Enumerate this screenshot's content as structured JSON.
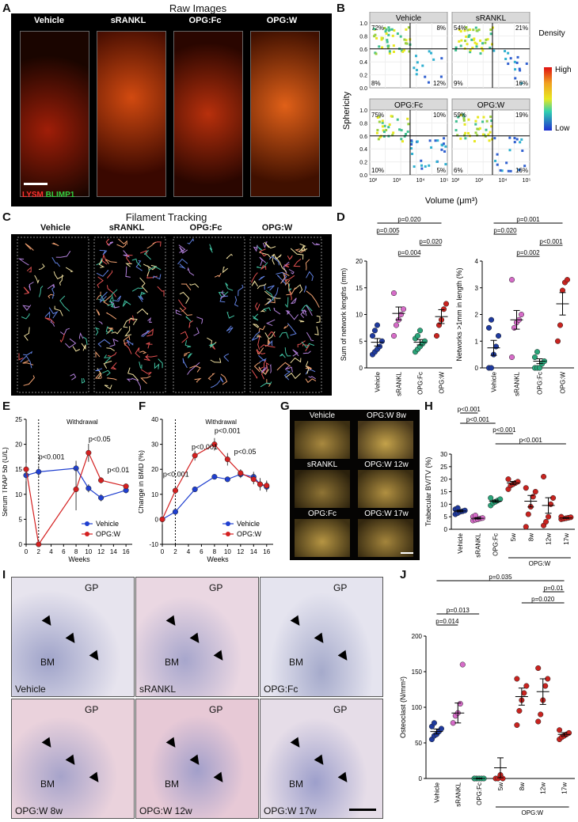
{
  "panels": {
    "A": {
      "label": "A",
      "title": "Raw Images",
      "conditions": [
        "Vehicle",
        "sRANKL",
        "OPG:Fc",
        "OPG:W"
      ],
      "legend_red": "LYSM",
      "legend_green": "BLIMP1"
    },
    "B": {
      "label": "B",
      "ylabel": "Sphericity",
      "xlabel": "Volume (μm³)",
      "legend_title": "Density",
      "legend_high": "High",
      "legend_low": "Low",
      "yticks": [
        "0.0",
        "0.2",
        "0.4",
        "0.6",
        "0.8",
        "1.0"
      ],
      "xticks": [
        "10²",
        "10³",
        "10⁴",
        "10⁵"
      ],
      "facets": [
        {
          "name": "Vehicle",
          "tl": "72%",
          "tr": "8%",
          "bl": "8%",
          "br": "12%"
        },
        {
          "name": "sRANKL",
          "tl": "54%",
          "tr": "21%",
          "bl": "9%",
          "br": "16%"
        },
        {
          "name": "OPG:Fc",
          "tl": "75%",
          "tr": "10%",
          "bl": "10%",
          "br": "5%"
        },
        {
          "name": "OPG:W",
          "tl": "59%",
          "tr": "19%",
          "bl": "6%",
          "br": "16%"
        }
      ]
    },
    "C": {
      "label": "C",
      "title": "Filament Tracking",
      "conditions": [
        "Vehicle",
        "sRANKL",
        "OPG:Fc",
        "OPG:W"
      ]
    },
    "G": {
      "label": "G",
      "left": [
        "Vehicle",
        "sRANKL",
        "OPG:Fc"
      ],
      "right": [
        "OPG:W 8w",
        "OPG:W 12w",
        "OPG:W 17w"
      ]
    },
    "I": {
      "label": "I",
      "tiles": [
        {
          "corner": "Vehicle",
          "gp": "GP",
          "bm": "BM"
        },
        {
          "corner": "sRANKL",
          "gp": "GP",
          "bm": "BM"
        },
        {
          "corner": "OPG:Fc",
          "gp": "GP",
          "bm": "BM"
        },
        {
          "corner": "OPG:W 8w",
          "gp": "GP",
          "bm": "BM"
        },
        {
          "corner": "OPG:W 12w",
          "gp": "GP",
          "bm": "BM"
        },
        {
          "corner": "OPG:W 17w",
          "gp": "GP",
          "bm": "BM"
        }
      ]
    }
  },
  "chart_data": [
    {
      "id": "D1",
      "label": "D",
      "type": "scatter",
      "ylabel": "Sum of network lengths (mm)",
      "categories": [
        "Vehicle",
        "sRANKL",
        "OPG:Fc",
        "OPG:W"
      ],
      "ylim": [
        0,
        20
      ],
      "yticks": [
        0,
        5,
        10,
        15,
        20
      ],
      "colors": [
        "#1f3a9e",
        "#d66cc8",
        "#2aa57a",
        "#c8231f"
      ],
      "points": [
        [
          2.5,
          3,
          3.5,
          4,
          5,
          6,
          7,
          8
        ],
        [
          6,
          8,
          9,
          10,
          11,
          14
        ],
        [
          3,
          3.5,
          4,
          4.5,
          5,
          5.5,
          6,
          7
        ],
        [
          6,
          8,
          9,
          11,
          12
        ]
      ],
      "means": [
        4.8,
        10.2,
        4.8,
        9.6
      ],
      "sems": [
        0.7,
        1.2,
        0.5,
        1.3
      ],
      "sig": [
        {
          "a": 0,
          "b": 3,
          "text": "p=0.020"
        },
        {
          "a": 0,
          "b": 1,
          "text": "p=0.005"
        },
        {
          "a": 2,
          "b": 3,
          "text": "p=0.020"
        },
        {
          "a": 1,
          "b": 2,
          "text": "p=0.004"
        }
      ]
    },
    {
      "id": "D2",
      "type": "scatter",
      "ylabel": "Networks >1mm in length (%)",
      "categories": [
        "Vehicle",
        "sRANKL",
        "OPG:Fc",
        "OPG:W"
      ],
      "ylim": [
        0,
        4
      ],
      "yticks": [
        0,
        1,
        2,
        3,
        4
      ],
      "colors": [
        "#1f3a9e",
        "#d66cc8",
        "#2aa57a",
        "#c8231f"
      ],
      "points": [
        [
          0,
          0,
          0.5,
          0.8,
          1.2,
          1.5,
          1.8
        ],
        [
          0.4,
          1.5,
          1.7,
          1.8,
          2.0,
          3.3
        ],
        [
          0,
          0,
          0,
          0.15,
          0.25,
          0.4,
          0.6
        ],
        [
          1,
          1.6,
          2.9,
          3.2,
          3.3
        ]
      ],
      "means": [
        0.75,
        1.8,
        0.25,
        2.4
      ],
      "sems": [
        0.28,
        0.35,
        0.09,
        0.42
      ],
      "sig": [
        {
          "a": 0,
          "b": 3,
          "text": "p=0.001"
        },
        {
          "a": 0,
          "b": 1,
          "text": "p=0.020"
        },
        {
          "a": 2,
          "b": 3,
          "text": "p<0.001"
        },
        {
          "a": 1,
          "b": 2,
          "text": "p=0.002"
        }
      ]
    },
    {
      "id": "E",
      "label": "E",
      "type": "line",
      "ylabel": "Serum TRAP 5b (U/L)",
      "xlabel": "Weeks",
      "annotation": "Withdrawal",
      "xlim": [
        0,
        17
      ],
      "xticks": [
        0,
        2,
        4,
        6,
        8,
        10,
        12,
        14,
        16
      ],
      "ylim": [
        0,
        25
      ],
      "yticks": [
        0,
        5,
        10,
        15,
        20,
        25
      ],
      "series": [
        {
          "name": "Vehicle",
          "color": "#1f3fd0",
          "x": [
            0,
            2,
            8,
            10,
            12,
            16
          ],
          "y": [
            13.8,
            14.5,
            15.2,
            11.2,
            9.3,
            10.8
          ],
          "err": [
            1.2,
            1.2,
            1.5,
            0.8,
            0.7,
            0.6
          ]
        },
        {
          "name": "OPG:W",
          "color": "#d42020",
          "x": [
            0,
            2,
            8,
            10,
            12,
            16
          ],
          "y": [
            15,
            0,
            11,
            18.3,
            12.8,
            11.6
          ],
          "err": [
            1.3,
            0.2,
            4.2,
            1.8,
            0.6,
            0.5
          ]
        }
      ],
      "sig": [
        {
          "x": 2,
          "y": 17,
          "text": "p<0.001"
        },
        {
          "x": 10,
          "y": 20.6,
          "text": "p<0.05"
        },
        {
          "x": 13,
          "y": 14.4,
          "text": "p<0.01"
        }
      ]
    },
    {
      "id": "F",
      "label": "F",
      "type": "line",
      "ylabel": "Change in BMD (%)",
      "xlabel": "Weeks",
      "annotation": "Withdrawal",
      "xlim": [
        0,
        17
      ],
      "xticks": [
        0,
        2,
        4,
        6,
        8,
        10,
        12,
        14,
        16
      ],
      "ylim": [
        -10,
        40
      ],
      "yticks": [
        -10,
        0,
        10,
        20,
        30,
        40
      ],
      "series": [
        {
          "name": "Vehicle",
          "color": "#1f3fd0",
          "x": [
            0,
            2,
            5,
            8,
            10,
            12,
            14,
            15,
            16
          ],
          "y": [
            0,
            3,
            12,
            17,
            16,
            18,
            17,
            14,
            13
          ],
          "err": [
            1,
            1.5,
            1,
            1,
            1,
            1.5,
            2,
            2.5,
            2
          ]
        },
        {
          "name": "OPG:W",
          "color": "#d42020",
          "x": [
            0,
            2,
            5,
            8,
            10,
            12,
            14,
            15,
            16
          ],
          "y": [
            0,
            11.5,
            25.5,
            30,
            24,
            18.5,
            16,
            14,
            13.5
          ],
          "err": [
            2,
            1.5,
            2,
            2.5,
            2.5,
            1.5,
            2,
            2,
            2
          ]
        }
      ],
      "sig": [
        {
          "x": 0.1,
          "y": 17,
          "text": "p<0.001"
        },
        {
          "x": 4.5,
          "y": 28,
          "text": "p<0.001"
        },
        {
          "x": 8,
          "y": 34.5,
          "text": "p<0.001"
        },
        {
          "x": 11,
          "y": 26,
          "text": "p<0.05"
        }
      ]
    },
    {
      "id": "H",
      "label": "H",
      "type": "scatter",
      "ylabel": "Trabecular BV/TV (%)",
      "group_label": "OPG:W",
      "categories": [
        "Vehicle",
        "sRANKL",
        "OPG:Fc",
        "5w",
        "8w",
        "12w",
        "17w"
      ],
      "ylim": [
        0,
        30
      ],
      "yticks": [
        0,
        5,
        10,
        15,
        20,
        25,
        30
      ],
      "colors": [
        "#1f3a9e",
        "#d66cc8",
        "#2aa57a",
        "#c8231f",
        "#c8231f",
        "#c8231f",
        "#c8231f"
      ],
      "points": [
        [
          6,
          6.5,
          7,
          7.2,
          7.5,
          8,
          8.5
        ],
        [
          3.5,
          3.8,
          4,
          4.3,
          4.5,
          5,
          5.5
        ],
        [
          9.5,
          10.5,
          11,
          11.5,
          12,
          12.5
        ],
        [
          16,
          17.5,
          18,
          18.5,
          19,
          20
        ],
        [
          1,
          6,
          9,
          13,
          15,
          16.5
        ],
        [
          1.5,
          3,
          5,
          10,
          12.5,
          21
        ],
        [
          4,
          4.2,
          4.4,
          4.6,
          4.8,
          5
        ]
      ],
      "means": [
        7.3,
        4.4,
        11.2,
        18.5,
        11.2,
        9.5,
        4.5
      ],
      "sems": [
        0.35,
        0.3,
        0.45,
        0.6,
        2.3,
        3.1,
        0.15
      ],
      "sig": [
        {
          "a": 0,
          "b": 1,
          "text": "p<0.001"
        },
        {
          "a": 0,
          "b": 2,
          "text": "p<0.001"
        },
        {
          "a": 2,
          "b": 3,
          "text": "p<0.001"
        },
        {
          "a": 2,
          "b": 6,
          "text": "p<0.001"
        }
      ]
    },
    {
      "id": "J",
      "label": "J",
      "type": "scatter",
      "ylabel": "Osteoclast (N/mm²)",
      "group_label": "OPG:W",
      "categories": [
        "Vehicle",
        "sRANKL",
        "OPG:Fc",
        "5w",
        "8w",
        "12w",
        "17w"
      ],
      "ylim": [
        0,
        200
      ],
      "yticks": [
        0,
        50,
        100,
        150,
        200
      ],
      "colors": [
        "#1f3a9e",
        "#d66cc8",
        "#2aa57a",
        "#c8231f",
        "#c8231f",
        "#c8231f",
        "#c8231f"
      ],
      "points": [
        [
          55,
          60,
          62,
          66,
          70,
          73,
          78
        ],
        [
          78,
          88,
          92,
          105,
          160
        ],
        [
          0,
          0,
          0,
          0,
          0,
          0
        ],
        [
          0,
          0,
          5,
          0
        ],
        [
          75,
          95,
          110,
          120,
          130,
          140
        ],
        [
          80,
          90,
          110,
          130,
          140,
          155
        ],
        [
          55,
          58,
          60,
          62,
          64,
          68
        ]
      ],
      "means": [
        66,
        92,
        0,
        15,
        115,
        122,
        62
      ],
      "sems": [
        3.5,
        14,
        0.4,
        14,
        12,
        18,
        2.3
      ],
      "sig": [
        {
          "a": 0,
          "b": 6,
          "text": "p=0.035"
        },
        {
          "a": 5,
          "b": 6,
          "text": "p=0.01"
        },
        {
          "a": 4,
          "b": 6,
          "text": "p=0.020"
        },
        {
          "a": 0,
          "b": 2,
          "text": "p=0.013"
        },
        {
          "a": 0,
          "b": 1,
          "text": "p=0.014"
        }
      ]
    }
  ]
}
